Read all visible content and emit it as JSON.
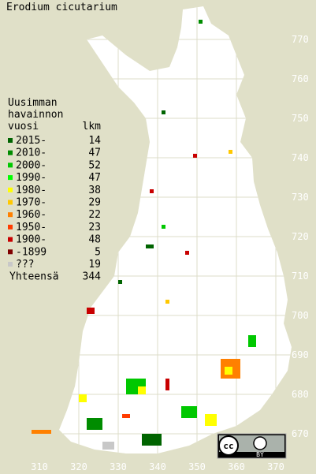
{
  "title": "Erodium cicutarium",
  "legend": {
    "heading": [
      "Uusimman",
      "havainnon",
      "vuosi"
    ],
    "count_heading": "lkm",
    "items": [
      {
        "label": "2015-",
        "count": 14,
        "color": "#006400"
      },
      {
        "label": "2010-",
        "count": 47,
        "color": "#008c00"
      },
      {
        "label": "2000-",
        "count": 52,
        "color": "#00c800"
      },
      {
        "label": "1990-",
        "count": 47,
        "color": "#00ff00"
      },
      {
        "label": "1980-",
        "count": 38,
        "color": "#ffff00"
      },
      {
        "label": "1970-",
        "count": 29,
        "color": "#ffc800"
      },
      {
        "label": "1960-",
        "count": 22,
        "color": "#ff8000"
      },
      {
        "label": "1950-",
        "count": 23,
        "color": "#ff3c00"
      },
      {
        "label": "1900-",
        "count": 48,
        "color": "#c80000"
      },
      {
        "label": "-1899",
        "count": 5,
        "color": "#800000"
      },
      {
        "label": "???",
        "count": 19,
        "color": "#c8c8c8"
      }
    ],
    "total_label": "Yhteensä",
    "total": 344
  },
  "x_axis": [
    310,
    320,
    330,
    340,
    350,
    360,
    370
  ],
  "y_axis": [
    670,
    680,
    690,
    700,
    710,
    720,
    730,
    740,
    750,
    760,
    770
  ],
  "license": [
    "cc",
    "BY"
  ]
}
